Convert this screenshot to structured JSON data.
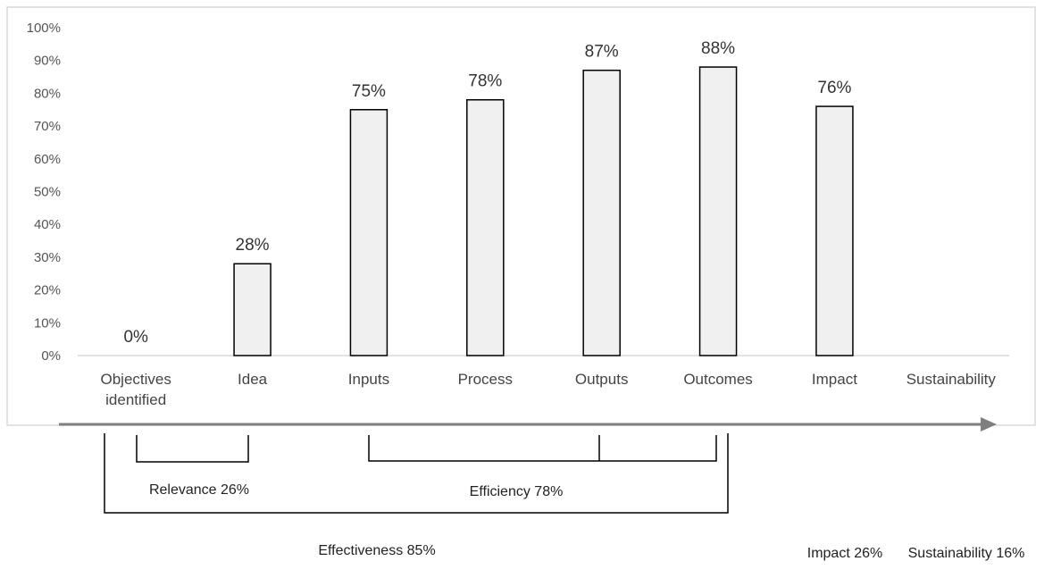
{
  "chart_data": {
    "type": "bar",
    "categories": [
      [
        "Objectives",
        "identified"
      ],
      [
        "Idea"
      ],
      [
        "Inputs"
      ],
      [
        "Process"
      ],
      [
        "Outputs"
      ],
      [
        "Outcomes"
      ],
      [
        "Impact"
      ],
      [
        "Sustainability"
      ]
    ],
    "values": [
      0,
      28,
      75,
      78,
      87,
      88,
      76,
      null
    ],
    "data_labels": [
      "0%",
      "28%",
      "75%",
      "78%",
      "87%",
      "88%",
      "76%",
      ""
    ],
    "ylim": [
      0,
      100
    ],
    "y_ticks": [
      "0%",
      "10%",
      "20%",
      "30%",
      "40%",
      "50%",
      "60%",
      "70%",
      "80%",
      "90%",
      "100%"
    ],
    "grid": false,
    "legend": "none",
    "colors": {
      "bar_fill": "#f0f0f0",
      "bar_stroke": "#000000",
      "arrow": "#7f7f7f",
      "frame": "#d9d9d9"
    }
  },
  "annotations": {
    "relevance": "Relevance 26%",
    "efficiency": "Efficiency 78%",
    "effectiveness": "Effectiveness 85%",
    "impact": "Impact 26%",
    "sustainability": "Sustainability 16%"
  }
}
